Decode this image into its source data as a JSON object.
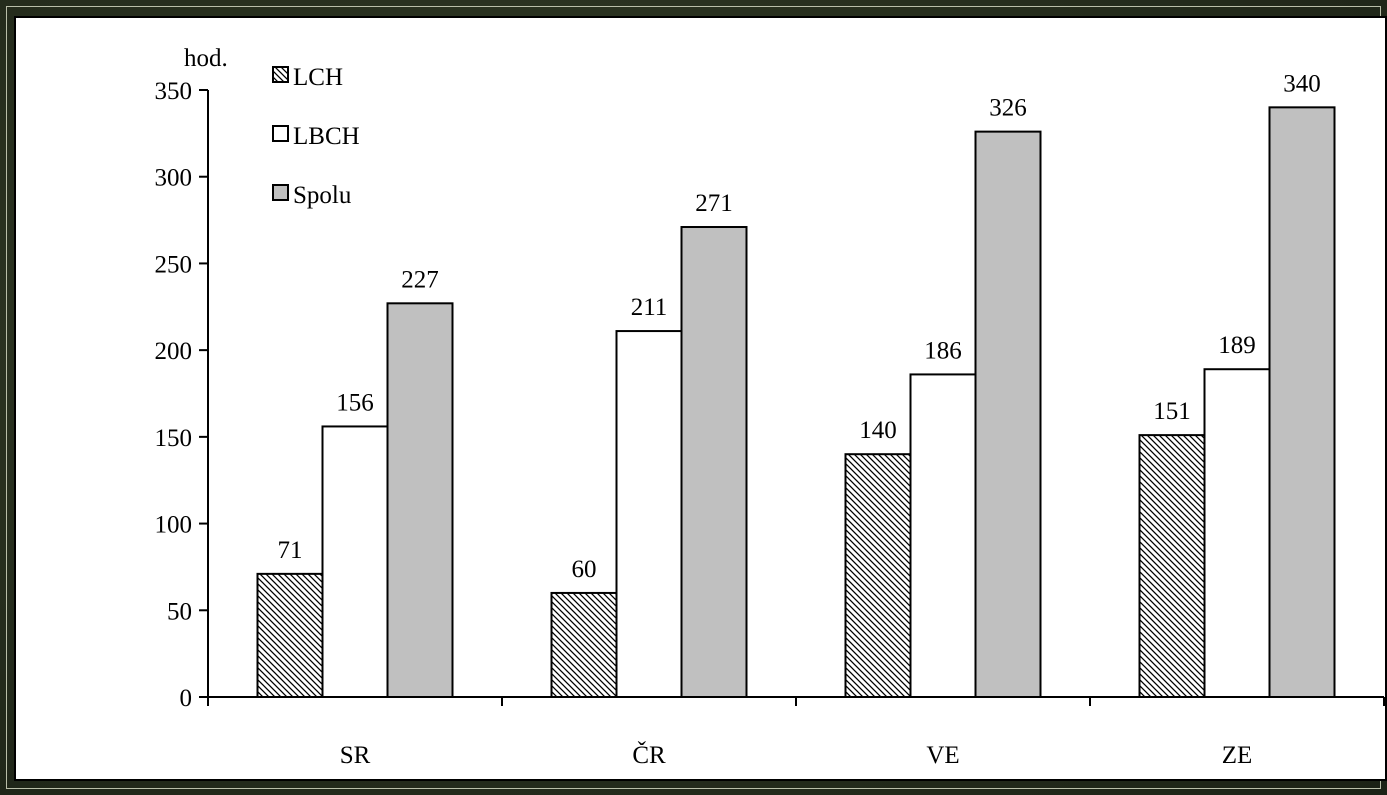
{
  "chart_data": {
    "type": "bar",
    "title": "",
    "xlabel": "",
    "ylabel": "hod.",
    "ylim": [
      0,
      350
    ],
    "yticks": [
      0,
      50,
      100,
      150,
      200,
      250,
      300,
      350
    ],
    "categories": [
      "SR",
      "ČR",
      "VE",
      "ZE"
    ],
    "series": [
      {
        "name": "LCH",
        "values": [
          71,
          60,
          140,
          151
        ],
        "fill": "hatched"
      },
      {
        "name": "LBCH",
        "values": [
          156,
          211,
          186,
          189
        ],
        "fill": "#ffffff"
      },
      {
        "name": "Spolu",
        "values": [
          227,
          271,
          326,
          340
        ],
        "fill": "#c0c0c0"
      }
    ],
    "legend_position": "top-left",
    "grid": false,
    "data_labels": true
  },
  "colors": {
    "background": "#2a3220",
    "panel": "#ffffff",
    "spolu_fill": "#c0c0c0",
    "stroke": "#000000"
  }
}
